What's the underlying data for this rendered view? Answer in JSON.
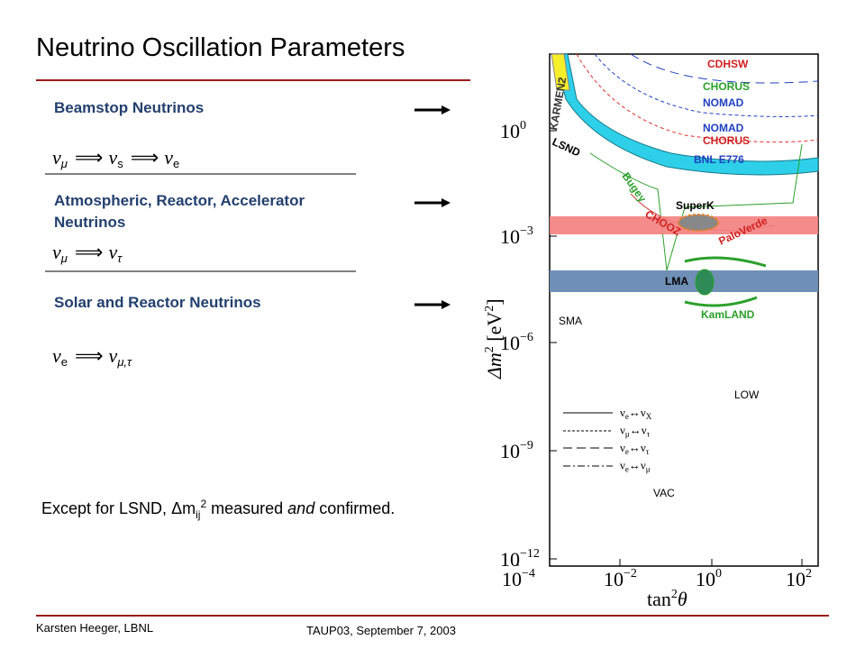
{
  "title": "Neutrino Oscillation Parameters",
  "sections": [
    {
      "heading": [
        "Beamstop Neutrinos"
      ],
      "formula": [
        {
          "s": "ν",
          "sub": "μ"
        },
        {
          "s": "⟹"
        },
        {
          "s": "ν",
          "sub": "s"
        },
        {
          "s": "⟹"
        },
        {
          "s": "ν",
          "sub": "e"
        }
      ]
    },
    {
      "heading": [
        "Atmospheric, Reactor, Accelerator",
        "Neutrinos"
      ],
      "formula": [
        {
          "s": "ν",
          "sub": "μ"
        },
        {
          "s": "⟹"
        },
        {
          "s": "ν",
          "sub": "τ"
        }
      ]
    },
    {
      "heading": [
        "Solar and Reactor Neutrinos"
      ],
      "formula": [
        {
          "s": "ν",
          "sub": "e"
        },
        {
          "s": "⟹"
        },
        {
          "s": "ν",
          "sub": "μ,τ"
        }
      ]
    }
  ],
  "statement": {
    "pre": "Except for LSND, ",
    "symbol": "Δ",
    "var": "m",
    "sub": "ij",
    "sup": "2",
    "mid": " measured ",
    "em": "and",
    "post": " confirmed."
  },
  "plot": {
    "yticks": [
      {
        "base": "10",
        "exp": "0"
      },
      {
        "base": "10",
        "exp": "−3"
      },
      {
        "base": "10",
        "exp": "−6"
      },
      {
        "base": "10",
        "exp": "−9"
      },
      {
        "base": "10",
        "exp": "−12"
      }
    ],
    "xticks": [
      {
        "base": "10",
        "exp": "−4"
      },
      {
        "base": "10",
        "exp": "−2"
      },
      {
        "base": "10",
        "exp": "0"
      },
      {
        "base": "10",
        "exp": "2"
      }
    ],
    "ylabel": {
      "a": "Δm",
      "sup": "2",
      "b": " [eV",
      "sup2": "2",
      "c": "]"
    },
    "xlabel": {
      "a": "tan",
      "sup": "2",
      "b": "θ"
    },
    "labels": [
      "CDHSW",
      "KARMEN2",
      "CHORUS",
      "NOMAD",
      "NOMAD",
      "CHORUS",
      "LSND",
      "BNL E776",
      "Bugey",
      "SuperK",
      "CHOOZ",
      "PaloVerde",
      "LMA",
      "KamLAND",
      "SMA",
      "LOW",
      "VAC"
    ],
    "legend": [
      {
        "a": "ν",
        "as": "e",
        "arr": "↔",
        "b": "ν",
        "bs": "X"
      },
      {
        "a": "ν",
        "as": "μ",
        "arr": "↔",
        "b": "ν",
        "bs": "τ"
      },
      {
        "a": "ν",
        "as": "e",
        "arr": "↔",
        "b": "ν",
        "bs": "τ"
      },
      {
        "a": "ν",
        "as": "e",
        "arr": "↔",
        "b": "ν",
        "bs": "μ"
      }
    ]
  },
  "footer": {
    "author": "Karsten Heeger, LBNL",
    "event": "TAUP03, September 7, 2003"
  }
}
